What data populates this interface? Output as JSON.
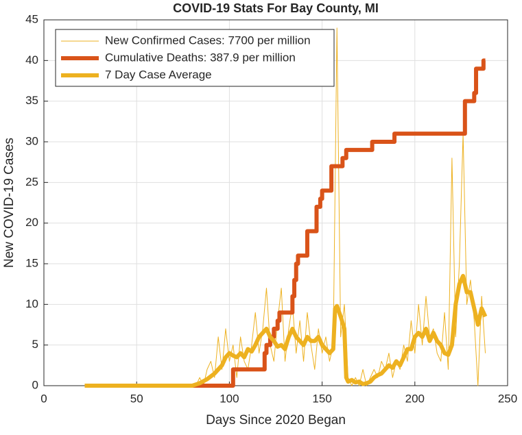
{
  "chart_data": {
    "type": "line",
    "title": "COVID-19 Stats For Bay County, MI",
    "xlabel": "Days Since 2020 Began",
    "ylabel": "New COVID-19 Cases",
    "xlim": [
      0,
      250
    ],
    "xticks": [
      0,
      50,
      100,
      150,
      200,
      250
    ],
    "ylim": [
      0,
      45
    ],
    "yticks": [
      0,
      5,
      10,
      15,
      20,
      25,
      30,
      35,
      40,
      45
    ],
    "grid": true,
    "legend": "northwest",
    "series": [
      {
        "name": "New Confirmed Cases: 7700 per million",
        "color": "#EDB120",
        "linewidth": 1,
        "x": [
          22,
          24,
          26,
          28,
          30,
          32,
          34,
          36,
          38,
          40,
          42,
          44,
          46,
          48,
          50,
          52,
          54,
          56,
          58,
          60,
          62,
          64,
          66,
          68,
          70,
          72,
          74,
          76,
          78,
          80,
          82,
          84,
          86,
          88,
          90,
          92,
          94,
          96,
          98,
          100,
          102,
          104,
          106,
          108,
          110,
          112,
          114,
          116,
          118,
          120,
          122,
          124,
          126,
          128,
          130,
          132,
          134,
          136,
          138,
          140,
          142,
          144,
          146,
          148,
          150,
          152,
          154,
          156,
          158,
          160,
          162,
          164,
          166,
          168,
          170,
          172,
          174,
          176,
          178,
          180,
          182,
          184,
          186,
          188,
          190,
          192,
          194,
          196,
          198,
          200,
          202,
          204,
          206,
          208,
          210,
          212,
          214,
          216,
          218,
          220,
          222,
          224,
          226,
          228,
          230,
          232,
          234,
          236,
          238
        ],
        "values": [
          0,
          0,
          0,
          0,
          0,
          0,
          0,
          0,
          0,
          0,
          0,
          0,
          0,
          0,
          0,
          0,
          0,
          0,
          0,
          0,
          0,
          0,
          0,
          0,
          0,
          0,
          0,
          0,
          0,
          0,
          0,
          1,
          0,
          2,
          3,
          1,
          6,
          2,
          7,
          3,
          5,
          1,
          6,
          3,
          2,
          5,
          9,
          4,
          7,
          12,
          5,
          3,
          8,
          12,
          3,
          7,
          10,
          4,
          8,
          3,
          9,
          5,
          2,
          7,
          4,
          6,
          3,
          5,
          44,
          6,
          10,
          1,
          0,
          1,
          0,
          2,
          0,
          1,
          2,
          1,
          3,
          2,
          4,
          1,
          3,
          2,
          5,
          3,
          8,
          4,
          10,
          5,
          11,
          6,
          7,
          4,
          3,
          9,
          2,
          28,
          6,
          15,
          31,
          10,
          13,
          8,
          0,
          11,
          4
        ]
      },
      {
        "name": "Cumulative Deaths: 387.9 per million",
        "color": "#D95319",
        "linewidth": 6,
        "step": true,
        "x": [
          22,
          102,
          119,
          120,
          122,
          124,
          126,
          127,
          134,
          135,
          136,
          137,
          142,
          147,
          149,
          150,
          155,
          161,
          163,
          177,
          189,
          227,
          232,
          233,
          237,
          238
        ],
        "values": [
          0,
          2,
          4,
          5,
          6,
          7,
          8,
          9,
          11,
          13,
          15,
          16,
          19,
          22,
          23,
          24,
          27,
          28,
          29,
          30,
          31,
          35,
          36,
          39,
          40,
          40
        ]
      },
      {
        "name": "7 Day Case Average",
        "color": "#EDB120",
        "linewidth": 6,
        "x": [
          22,
          80,
          84,
          88,
          92,
          96,
          98,
          100,
          102,
          104,
          106,
          108,
          110,
          112,
          114,
          116,
          118,
          120,
          122,
          124,
          126,
          128,
          130,
          132,
          134,
          136,
          138,
          140,
          142,
          144,
          146,
          148,
          150,
          152,
          154,
          156,
          157,
          158,
          160,
          162,
          163,
          164,
          166,
          168,
          170,
          172,
          174,
          176,
          178,
          180,
          182,
          184,
          186,
          188,
          190,
          192,
          194,
          196,
          198,
          200,
          202,
          204,
          206,
          208,
          210,
          212,
          214,
          216,
          218,
          220,
          222,
          224,
          226,
          228,
          230,
          232,
          234,
          236,
          238
        ],
        "values": [
          0,
          0,
          0.3,
          0.8,
          1.5,
          2.5,
          3.5,
          4,
          3.7,
          3.5,
          4,
          3.5,
          4.5,
          4.2,
          5,
          6,
          6.5,
          7,
          6,
          5.5,
          4.8,
          5,
          4.5,
          6,
          7,
          6,
          5.5,
          5,
          6,
          5.5,
          5.5,
          6,
          5,
          4.5,
          4,
          4.5,
          9.5,
          9.8,
          8.5,
          7,
          1,
          0.5,
          0.7,
          0.4,
          0.5,
          0.2,
          0.3,
          0.5,
          1,
          1.3,
          1.5,
          2,
          2.5,
          2.2,
          3,
          2.5,
          3.5,
          4.5,
          4.5,
          6,
          6.5,
          6,
          7,
          5.5,
          6.5,
          5.5,
          5,
          4,
          3.8,
          5,
          10,
          12.5,
          13.5,
          11.5,
          11.5,
          9.5,
          7.5,
          9.5,
          8.5
        ]
      }
    ]
  }
}
